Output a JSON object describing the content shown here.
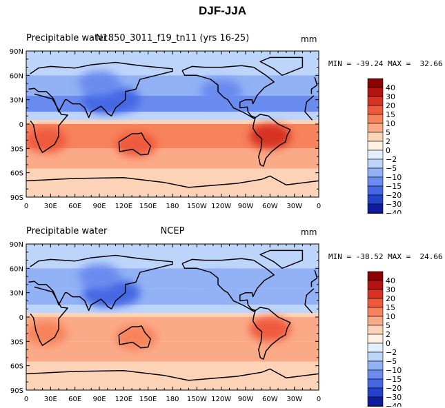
{
  "title": "DJF-JJA",
  "chart_data": [
    {
      "type": "heatmap",
      "title_left": "Precipitable water",
      "title_center": "N1850_3011_f19_tn11 (yrs 16-25)",
      "units": "mm",
      "min": "-39.24",
      "max": "32.66",
      "stats_text": "MIN = -39.24 MAX =  32.66",
      "x_ticks": [
        "0",
        "30E",
        "60E",
        "90E",
        "120E",
        "150E",
        "180",
        "150W",
        "120W",
        "90W",
        "60W",
        "30W",
        "0"
      ],
      "y_ticks": [
        "90N",
        "60N",
        "30N",
        "0",
        "30S",
        "60S",
        "90S"
      ],
      "xlim": [
        0,
        360
      ],
      "ylim": [
        -90,
        90
      ],
      "color_levels": [
        -40,
        -30,
        -20,
        -15,
        -10,
        -5,
        -2,
        0,
        2,
        5,
        10,
        15,
        20,
        30,
        40
      ],
      "bands": [
        {
          "lat": [
            60,
            90
          ],
          "level": -5
        },
        {
          "lat": [
            35,
            60
          ],
          "level": -10
        },
        {
          "lat": [
            15,
            35
          ],
          "level": -15
        },
        {
          "lat": [
            5,
            15
          ],
          "level": -5
        },
        {
          "lat": [
            0,
            5
          ],
          "level": 2
        },
        {
          "lat": [
            -30,
            0
          ],
          "level": 10
        },
        {
          "lat": [
            -55,
            -30
          ],
          "level": 5
        },
        {
          "lat": [
            -90,
            -55
          ],
          "level": 2
        }
      ],
      "features": [
        {
          "lon": 25,
          "lat": -20,
          "level": 15
        },
        {
          "lon": 135,
          "lat": -25,
          "level": 15
        },
        {
          "lon": 300,
          "lat": -15,
          "level": 20
        },
        {
          "lon": 95,
          "lat": 28,
          "level": -20
        },
        {
          "lon": 115,
          "lat": 30,
          "level": -20
        },
        {
          "lon": 90,
          "lat": 50,
          "level": -15
        },
        {
          "lon": 240,
          "lat": 40,
          "level": -15
        }
      ]
    },
    {
      "type": "heatmap",
      "title_left": "Precipitable water",
      "title_center": "NCEP",
      "units": "mm",
      "min": "-38.52",
      "max": "24.66",
      "stats_text": "MIN = -38.52 MAX =  24.66",
      "x_ticks": [
        "0",
        "30E",
        "60E",
        "90E",
        "120E",
        "150E",
        "180",
        "150W",
        "120W",
        "90W",
        "60W",
        "30W",
        "0"
      ],
      "y_ticks": [
        "90N",
        "60N",
        "30N",
        "0",
        "30S",
        "60S",
        "90S"
      ],
      "xlim": [
        0,
        360
      ],
      "ylim": [
        -90,
        90
      ],
      "color_levels": [
        -40,
        -30,
        -20,
        -15,
        -10,
        -5,
        -2,
        0,
        2,
        5,
        10,
        15,
        20,
        30,
        40
      ],
      "bands": [
        {
          "lat": [
            60,
            90
          ],
          "level": -5
        },
        {
          "lat": [
            35,
            60
          ],
          "level": -10
        },
        {
          "lat": [
            15,
            35
          ],
          "level": -10
        },
        {
          "lat": [
            5,
            15
          ],
          "level": -5
        },
        {
          "lat": [
            0,
            5
          ],
          "level": 2
        },
        {
          "lat": [
            -30,
            0
          ],
          "level": 5
        },
        {
          "lat": [
            -55,
            -30
          ],
          "level": 5
        },
        {
          "lat": [
            -90,
            -55
          ],
          "level": 2
        }
      ],
      "features": [
        {
          "lon": 25,
          "lat": -20,
          "level": 10
        },
        {
          "lon": 135,
          "lat": -25,
          "level": 10
        },
        {
          "lon": 300,
          "lat": -15,
          "level": 15
        },
        {
          "lon": 95,
          "lat": 28,
          "level": -20
        },
        {
          "lon": 115,
          "lat": 30,
          "level": -20
        },
        {
          "lon": 90,
          "lat": 50,
          "level": -15
        },
        {
          "lon": 240,
          "lat": 40,
          "level": -10
        }
      ]
    }
  ],
  "colorbar": {
    "labels": [
      "40",
      "30",
      "20",
      "15",
      "10",
      "5",
      "2",
      "0",
      "−2",
      "−5",
      "−10",
      "−15",
      "−20",
      "−30",
      "−40"
    ],
    "colors": [
      "#8b0000",
      "#b3120f",
      "#d73224",
      "#ef5a3c",
      "#f7835c",
      "#fbaa88",
      "#fdd3b8",
      "#fff0e3",
      "#e2efff",
      "#bdd4fb",
      "#92b2f5",
      "#6a8bef",
      "#4567e4",
      "#2442cc",
      "#0e1c9c",
      "#020a66"
    ]
  }
}
